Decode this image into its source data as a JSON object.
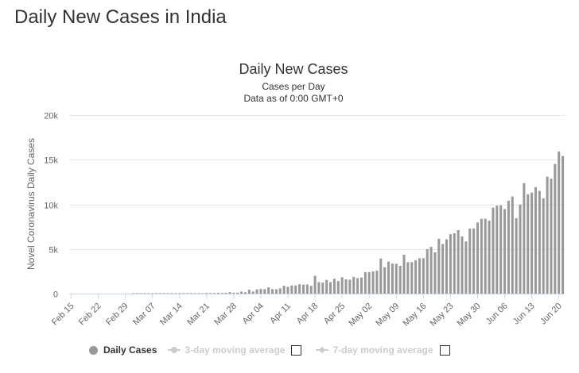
{
  "page": {
    "heading": "Daily New Cases in India"
  },
  "chart_data": {
    "type": "bar",
    "title": "Daily New Cases",
    "subtitle_lines": [
      "Cases per Day",
      "Data as of 0:00 GMT+0"
    ],
    "ylabel": "Novel Coronavirus Daily Cases",
    "xlabel": "",
    "ylim": [
      0,
      20000
    ],
    "y_ticks": [
      0,
      5000,
      10000,
      15000,
      20000
    ],
    "y_tick_labels": [
      "0",
      "5k",
      "10k",
      "15k",
      "20k"
    ],
    "x_tick_labels": [
      "Feb 15",
      "Feb 22",
      "Feb 29",
      "Mar 07",
      "Mar 14",
      "Mar 21",
      "Mar 28",
      "Apr 04",
      "Apr 11",
      "Apr 18",
      "Apr 25",
      "May 02",
      "May 09",
      "May 16",
      "May 23",
      "May 30",
      "Jun 06",
      "Jun 13",
      "Jun 20"
    ],
    "grid": "horizontal",
    "bar_color": "#999999",
    "gridline_color": "#e6e6e6",
    "categories": [
      "Feb 15",
      "Feb 16",
      "Feb 17",
      "Feb 18",
      "Feb 19",
      "Feb 20",
      "Feb 21",
      "Feb 22",
      "Feb 23",
      "Feb 24",
      "Feb 25",
      "Feb 26",
      "Feb 27",
      "Feb 28",
      "Feb 29",
      "Mar 01",
      "Mar 02",
      "Mar 03",
      "Mar 04",
      "Mar 05",
      "Mar 06",
      "Mar 07",
      "Mar 08",
      "Mar 09",
      "Mar 10",
      "Mar 11",
      "Mar 12",
      "Mar 13",
      "Mar 14",
      "Mar 15",
      "Mar 16",
      "Mar 17",
      "Mar 18",
      "Mar 19",
      "Mar 20",
      "Mar 21",
      "Mar 22",
      "Mar 23",
      "Mar 24",
      "Mar 25",
      "Mar 26",
      "Mar 27",
      "Mar 28",
      "Mar 29",
      "Mar 30",
      "Mar 31",
      "Apr 01",
      "Apr 02",
      "Apr 03",
      "Apr 04",
      "Apr 05",
      "Apr 06",
      "Apr 07",
      "Apr 08",
      "Apr 09",
      "Apr 10",
      "Apr 11",
      "Apr 12",
      "Apr 13",
      "Apr 14",
      "Apr 15",
      "Apr 16",
      "Apr 17",
      "Apr 18",
      "Apr 19",
      "Apr 20",
      "Apr 21",
      "Apr 22",
      "Apr 23",
      "Apr 24",
      "Apr 25",
      "Apr 26",
      "Apr 27",
      "Apr 28",
      "Apr 29",
      "Apr 30",
      "May 01",
      "May 02",
      "May 03",
      "May 04",
      "May 05",
      "May 06",
      "May 07",
      "May 08",
      "May 09",
      "May 10",
      "May 11",
      "May 12",
      "May 13",
      "May 14",
      "May 15",
      "May 16",
      "May 17",
      "May 18",
      "May 19",
      "May 20",
      "May 21",
      "May 22",
      "May 23",
      "May 24",
      "May 25",
      "May 26",
      "May 27",
      "May 28",
      "May 29",
      "May 30",
      "May 31",
      "Jun 01",
      "Jun 02",
      "Jun 03",
      "Jun 04",
      "Jun 05",
      "Jun 06",
      "Jun 07",
      "Jun 08",
      "Jun 09",
      "Jun 10",
      "Jun 11",
      "Jun 12",
      "Jun 13",
      "Jun 14",
      "Jun 15",
      "Jun 16",
      "Jun 17",
      "Jun 18",
      "Jun 19",
      "Jun 20",
      "Jun 21"
    ],
    "series": [
      {
        "name": "Daily Cases",
        "values": [
          0,
          0,
          0,
          0,
          0,
          0,
          0,
          0,
          0,
          0,
          0,
          0,
          0,
          0,
          0,
          0,
          2,
          1,
          22,
          2,
          1,
          3,
          5,
          9,
          15,
          8,
          13,
          8,
          11,
          23,
          17,
          23,
          14,
          25,
          54,
          77,
          69,
          63,
          89,
          76,
          88,
          160,
          100,
          110,
          230,
          150,
          437,
          235,
          478,
          525,
          505,
          704,
          508,
          485,
          591,
          896,
          768,
          918,
          909,
          1054,
          1006,
          1029,
          873,
          1993,
          1289,
          1239,
          1537,
          1292,
          1667,
          1408,
          1835,
          1607,
          1561,
          1873,
          1738,
          1801,
          2396,
          2411,
          2487,
          2573,
          3932,
          2963,
          3587,
          3364,
          3344,
          3113,
          4353,
          3524,
          3525,
          3722,
          3967,
          3970,
          4987,
          5242,
          4630,
          6147,
          5553,
          6088,
          6654,
          6767,
          7113,
          6414,
          5843,
          7293,
          7300,
          7964,
          8380,
          8392,
          8171,
          9633,
          9851,
          9887,
          9472,
          10408,
          10882,
          8442,
          9985,
          12375,
          11128,
          11320,
          11929,
          11502,
          10667,
          13103,
          12881,
          14516,
          15918,
          15413
        ]
      }
    ]
  },
  "legend": {
    "daily_cases": "Daily Cases",
    "avg3": "3-day moving average",
    "avg7": "7-day moving average"
  }
}
